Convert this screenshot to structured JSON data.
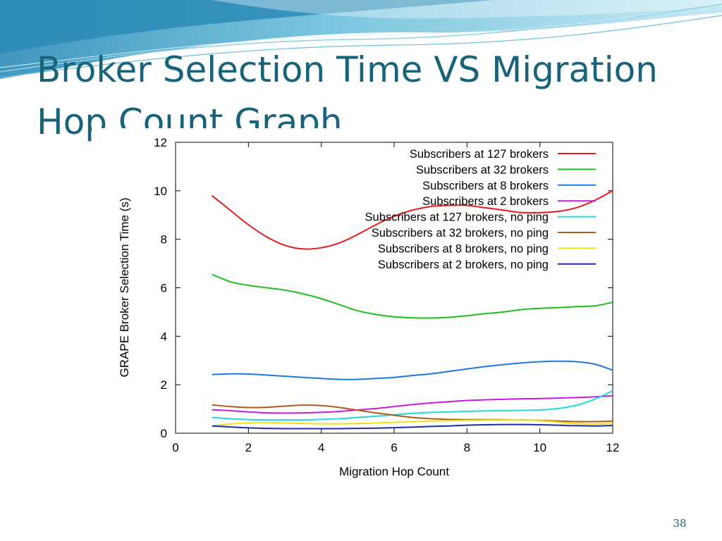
{
  "slide": {
    "title": "Broker Selection Time VS Migration Hop Count Graph",
    "page_number": "38",
    "theme_colors": {
      "title": "#17647a",
      "wave_dark": "#2c8bb7",
      "wave_mid": "#6bbfdc",
      "wave_light": "#bfe6f2"
    }
  },
  "chart_data": {
    "type": "line",
    "title": "",
    "xlabel": "Migration Hop Count",
    "ylabel": "GRAPE Broker Selection Time (s)",
    "xlim": [
      0,
      12
    ],
    "ylim": [
      0,
      12
    ],
    "xticks": [
      "0",
      "2",
      "4",
      "6",
      "8",
      "10",
      "12"
    ],
    "yticks": [
      "0",
      "2",
      "4",
      "6",
      "8",
      "10",
      "12"
    ],
    "grid": false,
    "legend_position": "top-right",
    "series": [
      {
        "name": "Subscribers at 127 brokers",
        "color": "#e8191a",
        "points": [
          [
            1,
            9.8
          ],
          [
            1.5,
            9.2
          ],
          [
            2,
            8.6
          ],
          [
            2.5,
            8.1
          ],
          [
            3,
            7.75
          ],
          [
            3.5,
            7.6
          ],
          [
            4,
            7.65
          ],
          [
            4.5,
            7.85
          ],
          [
            5,
            8.2
          ],
          [
            5.5,
            8.6
          ],
          [
            6,
            8.95
          ],
          [
            6.5,
            9.2
          ],
          [
            7,
            9.35
          ],
          [
            7.5,
            9.4
          ],
          [
            8,
            9.4
          ],
          [
            8.5,
            9.3
          ],
          [
            9,
            9.2
          ],
          [
            9.5,
            9.1
          ],
          [
            10,
            9.1
          ],
          [
            10.5,
            9.15
          ],
          [
            11,
            9.3
          ],
          [
            11.5,
            9.6
          ],
          [
            12,
            10.0
          ]
        ]
      },
      {
        "name": "Subscribers at 32 brokers",
        "color": "#1fbd1f",
        "points": [
          [
            1,
            6.55
          ],
          [
            1.5,
            6.25
          ],
          [
            2,
            6.1
          ],
          [
            2.5,
            6.0
          ],
          [
            3,
            5.9
          ],
          [
            3.5,
            5.75
          ],
          [
            4,
            5.55
          ],
          [
            4.5,
            5.3
          ],
          [
            5,
            5.05
          ],
          [
            5.5,
            4.9
          ],
          [
            6,
            4.8
          ],
          [
            6.5,
            4.76
          ],
          [
            7,
            4.75
          ],
          [
            7.5,
            4.78
          ],
          [
            8,
            4.85
          ],
          [
            8.5,
            4.93
          ],
          [
            9,
            5.0
          ],
          [
            9.5,
            5.1
          ],
          [
            10,
            5.15
          ],
          [
            10.5,
            5.18
          ],
          [
            11,
            5.22
          ],
          [
            11.5,
            5.25
          ],
          [
            12,
            5.4
          ]
        ]
      },
      {
        "name": "Subscribers at 8 brokers",
        "color": "#1f78d8",
        "points": [
          [
            1,
            2.42
          ],
          [
            1.5,
            2.45
          ],
          [
            2,
            2.44
          ],
          [
            2.5,
            2.4
          ],
          [
            3,
            2.35
          ],
          [
            3.5,
            2.3
          ],
          [
            4,
            2.26
          ],
          [
            4.5,
            2.22
          ],
          [
            5,
            2.22
          ],
          [
            5.5,
            2.26
          ],
          [
            6,
            2.3
          ],
          [
            6.5,
            2.38
          ],
          [
            7,
            2.45
          ],
          [
            7.5,
            2.55
          ],
          [
            8,
            2.65
          ],
          [
            8.5,
            2.75
          ],
          [
            9,
            2.83
          ],
          [
            9.5,
            2.9
          ],
          [
            10,
            2.95
          ],
          [
            10.5,
            2.97
          ],
          [
            11,
            2.95
          ],
          [
            11.5,
            2.85
          ],
          [
            12,
            2.6
          ]
        ]
      },
      {
        "name": "Subscribers at 2 brokers",
        "color": "#c41fd8",
        "points": [
          [
            1,
            0.97
          ],
          [
            1.5,
            0.93
          ],
          [
            2,
            0.88
          ],
          [
            2.5,
            0.84
          ],
          [
            3,
            0.83
          ],
          [
            3.5,
            0.84
          ],
          [
            4,
            0.86
          ],
          [
            4.5,
            0.9
          ],
          [
            5,
            0.96
          ],
          [
            5.5,
            1.02
          ],
          [
            6,
            1.1
          ],
          [
            6.5,
            1.18
          ],
          [
            7,
            1.25
          ],
          [
            7.5,
            1.3
          ],
          [
            8,
            1.35
          ],
          [
            8.5,
            1.38
          ],
          [
            9,
            1.4
          ],
          [
            9.5,
            1.42
          ],
          [
            10,
            1.43
          ],
          [
            10.5,
            1.45
          ],
          [
            11,
            1.47
          ],
          [
            11.5,
            1.5
          ],
          [
            12,
            1.55
          ]
        ]
      },
      {
        "name": "Subscribers at 127 brokers, no ping",
        "color": "#22d8e0",
        "points": [
          [
            1,
            0.65
          ],
          [
            1.5,
            0.6
          ],
          [
            2,
            0.56
          ],
          [
            2.5,
            0.55
          ],
          [
            3,
            0.55
          ],
          [
            3.5,
            0.55
          ],
          [
            4,
            0.57
          ],
          [
            4.5,
            0.6
          ],
          [
            5,
            0.65
          ],
          [
            5.5,
            0.7
          ],
          [
            6,
            0.76
          ],
          [
            6.5,
            0.82
          ],
          [
            7,
            0.86
          ],
          [
            7.5,
            0.88
          ],
          [
            8,
            0.9
          ],
          [
            8.5,
            0.92
          ],
          [
            9,
            0.93
          ],
          [
            9.5,
            0.94
          ],
          [
            10,
            0.96
          ],
          [
            10.5,
            1.02
          ],
          [
            11,
            1.15
          ],
          [
            11.5,
            1.4
          ],
          [
            12,
            1.75
          ]
        ]
      },
      {
        "name": "Subscribers at 32 brokers, no ping",
        "color": "#b05a1e",
        "points": [
          [
            1,
            1.17
          ],
          [
            1.5,
            1.1
          ],
          [
            2,
            1.06
          ],
          [
            2.5,
            1.07
          ],
          [
            3,
            1.12
          ],
          [
            3.5,
            1.16
          ],
          [
            4,
            1.14
          ],
          [
            4.5,
            1.06
          ],
          [
            5,
            0.95
          ],
          [
            5.5,
            0.84
          ],
          [
            6,
            0.74
          ],
          [
            6.5,
            0.65
          ],
          [
            7,
            0.6
          ],
          [
            7.5,
            0.57
          ],
          [
            8,
            0.56
          ],
          [
            8.5,
            0.56
          ],
          [
            9,
            0.56
          ],
          [
            9.5,
            0.55
          ],
          [
            10,
            0.53
          ],
          [
            10.5,
            0.5
          ],
          [
            11,
            0.48
          ],
          [
            11.5,
            0.48
          ],
          [
            12,
            0.5
          ]
        ]
      },
      {
        "name": "Subscribers at 8 brokers, no ping",
        "color": "#f0e014",
        "points": [
          [
            1,
            0.3
          ],
          [
            1.5,
            0.38
          ],
          [
            2,
            0.42
          ],
          [
            2.5,
            0.43
          ],
          [
            3,
            0.42
          ],
          [
            3.5,
            0.4
          ],
          [
            4,
            0.39
          ],
          [
            4.5,
            0.39
          ],
          [
            5,
            0.4
          ],
          [
            5.5,
            0.42
          ],
          [
            6,
            0.45
          ],
          [
            6.5,
            0.48
          ],
          [
            7,
            0.5
          ],
          [
            7.5,
            0.52
          ],
          [
            8,
            0.53
          ],
          [
            8.5,
            0.54
          ],
          [
            9,
            0.55
          ],
          [
            9.5,
            0.55
          ],
          [
            10,
            0.52
          ],
          [
            10.5,
            0.46
          ],
          [
            11,
            0.4
          ],
          [
            11.5,
            0.38
          ],
          [
            12,
            0.4
          ]
        ]
      },
      {
        "name": "Subscribers at 2 brokers, no ping",
        "color": "#1f2ea8",
        "points": [
          [
            1,
            0.3
          ],
          [
            1.5,
            0.26
          ],
          [
            2,
            0.22
          ],
          [
            2.5,
            0.2
          ],
          [
            3,
            0.19
          ],
          [
            3.5,
            0.19
          ],
          [
            4,
            0.19
          ],
          [
            4.5,
            0.19
          ],
          [
            5,
            0.2
          ],
          [
            5.5,
            0.21
          ],
          [
            6,
            0.23
          ],
          [
            6.5,
            0.25
          ],
          [
            7,
            0.28
          ],
          [
            7.5,
            0.3
          ],
          [
            8,
            0.33
          ],
          [
            8.5,
            0.35
          ],
          [
            9,
            0.36
          ],
          [
            9.5,
            0.36
          ],
          [
            10,
            0.35
          ],
          [
            10.5,
            0.33
          ],
          [
            11,
            0.31
          ],
          [
            11.5,
            0.3
          ],
          [
            12,
            0.32
          ]
        ]
      }
    ]
  }
}
